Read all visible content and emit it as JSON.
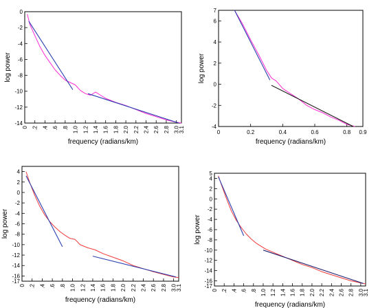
{
  "chart_data": [
    {
      "type": "line",
      "xlabel": "frequency (radians/km)",
      "ylabel": "log power",
      "xlim": [
        0,
        3.1
      ],
      "ylim": [
        -14,
        0
      ],
      "xticks": [
        0,
        0.2,
        0.4,
        0.6,
        0.8,
        1.0,
        1.2,
        1.4,
        1.6,
        1.8,
        2.0,
        2.2,
        2.4,
        2.6,
        2.8,
        3.0,
        3.1
      ],
      "xtick_labels": [
        "0",
        ".2",
        ".4",
        ".6",
        ".8",
        "1.0",
        "1.2",
        "1.4",
        "1.6",
        "1.8",
        "2.0",
        "2.2",
        "2.4",
        "2.6",
        "2.8",
        "3.0",
        "3.1"
      ],
      "x_rotated": true,
      "yticks": [
        0,
        -2,
        -4,
        -6,
        -8,
        -10,
        -12,
        -14
      ],
      "ytick_labels": [
        "0",
        "-2",
        "-4",
        "-6",
        "-8",
        "-10",
        "-12",
        "-14"
      ],
      "grid": false,
      "series": [
        {
          "color": "#ff2ad4",
          "kind": "spectrum",
          "x": [
            0.05,
            0.1,
            0.2,
            0.3,
            0.4,
            0.5,
            0.6,
            0.7,
            0.8,
            0.9,
            1.0,
            1.1,
            1.2,
            1.3,
            1.4,
            1.5,
            1.6,
            1.8,
            2.0,
            2.2,
            2.4,
            2.6,
            2.8,
            3.0,
            3.1
          ],
          "y": [
            -0.3,
            -1.6,
            -3.0,
            -4.4,
            -5.5,
            -6.4,
            -7.3,
            -8.0,
            -8.6,
            -8.9,
            -9.2,
            -9.9,
            -10.3,
            -10.5,
            -10.1,
            -10.5,
            -10.9,
            -11.4,
            -11.8,
            -12.3,
            -12.8,
            -13.2,
            -13.6,
            -13.9,
            -14.0
          ]
        },
        {
          "color": "#2a3fb0",
          "kind": "fit",
          "x": [
            0.08,
            0.95
          ],
          "y": [
            -1.2,
            -9.8
          ]
        },
        {
          "color": "#2a3fb0",
          "kind": "fit",
          "x": [
            1.25,
            3.05
          ],
          "y": [
            -10.3,
            -14.0
          ]
        }
      ]
    },
    {
      "type": "line",
      "xlabel": "frequency (radians/km)",
      "ylabel": "log power",
      "xlim": [
        0,
        0.9
      ],
      "ylim": [
        -4,
        7
      ],
      "xticks": [
        0,
        0.2,
        0.4,
        0.6,
        0.8,
        0.9
      ],
      "xtick_labels": [
        "0",
        "0.2",
        "0.4",
        "0.6",
        "0.8",
        "0.9"
      ],
      "x_rotated": false,
      "yticks": [
        7,
        6,
        4,
        2,
        0,
        -2,
        -4
      ],
      "ytick_labels": [
        "7",
        "6",
        "4",
        "2",
        "0",
        "-2",
        "-4"
      ],
      "grid": false,
      "series": [
        {
          "color": "#ff2ad4",
          "kind": "spectrum",
          "x": [
            0.1,
            0.15,
            0.2,
            0.25,
            0.3,
            0.33,
            0.36,
            0.4,
            0.45,
            0.5,
            0.55,
            0.6,
            0.65,
            0.7,
            0.75,
            0.8,
            0.85
          ],
          "y": [
            7.0,
            5.7,
            4.2,
            2.8,
            1.3,
            0.6,
            0.3,
            -0.4,
            -0.9,
            -1.4,
            -2.0,
            -2.4,
            -2.7,
            -3.1,
            -3.4,
            -3.8,
            -4.0
          ]
        },
        {
          "color": "#2a3fb0",
          "kind": "fit",
          "x": [
            0.1,
            0.32
          ],
          "y": [
            7.0,
            0.4
          ]
        },
        {
          "color": "#1a1a1a",
          "kind": "fit",
          "x": [
            0.33,
            0.84
          ],
          "y": [
            -0.1,
            -4.0
          ]
        }
      ]
    },
    {
      "type": "line",
      "xlabel": "frequency (radians/km)",
      "ylabel": "log power",
      "xlim": [
        0,
        3.1
      ],
      "ylim": [
        -17,
        5
      ],
      "xticks": [
        0,
        0.2,
        0.4,
        0.6,
        0.8,
        1.0,
        1.2,
        1.4,
        1.6,
        1.8,
        2.0,
        2.2,
        2.4,
        2.6,
        2.8,
        3.0,
        3.1
      ],
      "xtick_labels": [
        "0",
        ".2",
        ".4",
        ".6",
        ".8",
        "1.0",
        "1.2",
        "1.4",
        "1.6",
        "1.8",
        "2.0",
        "2.2",
        "2.4",
        "2.6",
        "2.8",
        "3.0",
        "3.1"
      ],
      "x_rotated": true,
      "yticks": [
        4,
        2,
        0,
        -2,
        -4,
        -6,
        -8,
        -10,
        -12,
        -14,
        -16,
        -17
      ],
      "ytick_labels": [
        "4",
        "2",
        "0",
        "-2",
        "-4",
        "-6",
        "-8",
        "-10",
        "-12",
        "-14",
        "-16",
        "-17"
      ],
      "grid": false,
      "series": [
        {
          "color": "#f0393a",
          "kind": "spectrum",
          "x": [
            0.08,
            0.15,
            0.25,
            0.35,
            0.45,
            0.55,
            0.65,
            0.75,
            0.85,
            0.95,
            1.05,
            1.15,
            1.3,
            1.45,
            1.6,
            1.8,
            2.0,
            2.2,
            2.4,
            2.6,
            2.8,
            3.0,
            3.1
          ],
          "y": [
            4.0,
            2.0,
            -0.5,
            -2.6,
            -4.3,
            -5.6,
            -6.6,
            -7.5,
            -8.2,
            -8.8,
            -9.0,
            -10.0,
            -10.6,
            -11.0,
            -11.7,
            -12.4,
            -13.1,
            -14.0,
            -14.6,
            -15.2,
            -15.7,
            -16.2,
            -16.3
          ]
        },
        {
          "color": "#2a3fb0",
          "kind": "fit",
          "x": [
            0.08,
            0.8
          ],
          "y": [
            3.2,
            -10.4
          ]
        },
        {
          "color": "#2a3fb0",
          "kind": "fit",
          "x": [
            1.4,
            3.05
          ],
          "y": [
            -12.2,
            -16.2
          ]
        }
      ]
    },
    {
      "type": "line",
      "xlabel": "frequency (radians/km)",
      "ylabel": "log power",
      "xlim": [
        0,
        3.1
      ],
      "ylim": [
        -17,
        5
      ],
      "xticks": [
        0,
        0.2,
        0.4,
        0.6,
        0.8,
        1.0,
        1.2,
        1.4,
        1.6,
        1.8,
        2.0,
        2.2,
        2.4,
        2.6,
        2.8,
        3.0,
        3.1
      ],
      "xtick_labels": [
        "0",
        ".2",
        ".4",
        ".6",
        ".8",
        "1.0",
        "1.2",
        "1.4",
        "1.6",
        "1.8",
        "2.0",
        "2.2",
        "2.4",
        "2.6",
        "2.8",
        "3.0",
        "3.1"
      ],
      "x_rotated": true,
      "yticks": [
        5,
        4,
        2,
        0,
        -2,
        -4,
        -6,
        -8,
        -10,
        -12,
        -14,
        -16,
        -17
      ],
      "ytick_labels": [
        "5",
        "4",
        "2",
        "0",
        "-2",
        "-4",
        "-6",
        "-8",
        "-10",
        "-12",
        "-14",
        "-16",
        "-17"
      ],
      "grid": false,
      "series": [
        {
          "color": "#f0393a",
          "kind": "spectrum",
          "x": [
            0.08,
            0.15,
            0.25,
            0.35,
            0.45,
            0.55,
            0.65,
            0.75,
            0.85,
            0.95,
            1.05,
            1.2,
            1.4,
            1.6,
            1.8,
            2.0,
            2.2,
            2.4,
            2.6,
            2.8,
            3.0,
            3.1
          ],
          "y": [
            4.5,
            2.6,
            0.0,
            -2.4,
            -4.2,
            -5.6,
            -6.8,
            -7.8,
            -8.6,
            -9.2,
            -9.8,
            -10.4,
            -11.2,
            -12.0,
            -12.8,
            -13.4,
            -14.2,
            -14.8,
            -15.4,
            -16.0,
            -16.4,
            -16.6
          ]
        },
        {
          "color": "#2a3fb0",
          "kind": "fit",
          "x": [
            0.08,
            0.6
          ],
          "y": [
            4.3,
            -7.2
          ]
        },
        {
          "color": "#1f1f6e",
          "kind": "fit",
          "x": [
            1.0,
            3.05
          ],
          "y": [
            -10.0,
            -16.5
          ]
        }
      ]
    }
  ]
}
